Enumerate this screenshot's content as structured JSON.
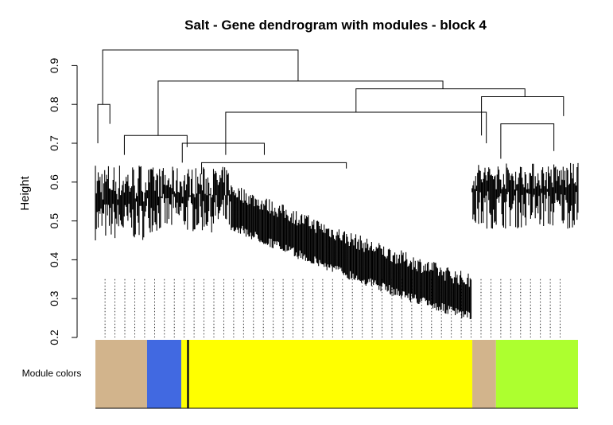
{
  "chart_data": {
    "type": "dendrogram",
    "title": "Salt - Gene dendrogram with modules - block 4",
    "ylabel": "Height",
    "xlabel": "",
    "ylim": [
      0.2,
      0.95
    ],
    "yticks": [
      0.2,
      0.3,
      0.4,
      0.5,
      0.6,
      0.7,
      0.8,
      0.9
    ],
    "ytick_labels": [
      "0.2",
      "0.3",
      "0.4",
      "0.5",
      "0.6",
      "0.7",
      "0.8",
      "0.9"
    ],
    "module_colors_label": "Module colors",
    "modules": [
      {
        "name": "tan",
        "color": "#d2b48c",
        "from": 0.0,
        "to": 0.107
      },
      {
        "name": "royalblue",
        "color": "#4169e1",
        "from": 0.107,
        "to": 0.178
      },
      {
        "name": "yellow",
        "color": "#ffff00",
        "from": 0.178,
        "to": 0.19
      },
      {
        "name": "black",
        "color": "#000000",
        "from": 0.19,
        "to": 0.194
      },
      {
        "name": "yellow",
        "color": "#ffff00",
        "from": 0.194,
        "to": 0.781
      },
      {
        "name": "tan",
        "color": "#d2b48c",
        "from": 0.781,
        "to": 0.83
      },
      {
        "name": "greenyellow",
        "color": "#adff2f",
        "from": 0.83,
        "to": 1.0
      }
    ],
    "merges": [
      {
        "x1": 0.015,
        "x2": 0.42,
        "h": 0.94,
        "h1": 0.8,
        "h2": 0.86
      },
      {
        "x1": 0.13,
        "x2": 0.72,
        "h": 0.86,
        "h1": 0.72,
        "h2": 0.84
      },
      {
        "x1": 0.54,
        "x2": 0.89,
        "h": 0.84,
        "h1": 0.78,
        "h2": 0.82
      },
      {
        "x1": 0.8,
        "x2": 0.97,
        "h": 0.82,
        "h1": 0.72,
        "h2": 0.77
      },
      {
        "x1": 0.27,
        "x2": 0.81,
        "h": 0.78,
        "h1": 0.67,
        "h2": 0.7
      },
      {
        "x1": 0.005,
        "x2": 0.03,
        "h": 0.8,
        "h1": 0.7,
        "h2": 0.75
      },
      {
        "x1": 0.06,
        "x2": 0.19,
        "h": 0.72,
        "h1": 0.67,
        "h2": 0.69
      },
      {
        "x1": 0.18,
        "x2": 0.35,
        "h": 0.7,
        "h1": 0.65,
        "h2": 0.67
      },
      {
        "x1": 0.22,
        "x2": 0.52,
        "h": 0.65,
        "h1": 0.62,
        "h2": 0.635
      },
      {
        "x1": 0.84,
        "x2": 0.95,
        "h": 0.75,
        "h1": 0.66,
        "h2": 0.68
      }
    ]
  }
}
